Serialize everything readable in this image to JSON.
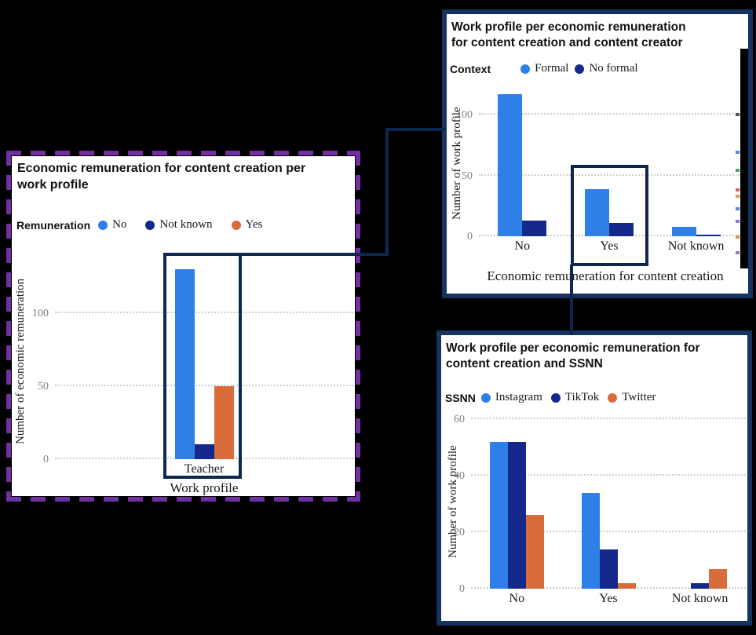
{
  "page": {
    "background": "#000000"
  },
  "colors": {
    "series_blue": "#2E7FE8",
    "series_navy": "#15298C",
    "series_orange": "#D96C3B",
    "panel_border": "#16335F",
    "highlight_box": "#0D2750",
    "connector": "#0D2750",
    "dashed_border": "#7030A0",
    "gridline": "#CFCFCF",
    "tick_text": "#808080"
  },
  "chart_data": [
    {
      "type": "bar",
      "title": "Economic remuneration for content creation per work profile",
      "title_lines": [
        "Economic remuneration for content creation per",
        "work profile"
      ],
      "legend_keyword": "Remuneration",
      "legend_position": "top-left",
      "categories": [
        "Teacher"
      ],
      "series": [
        {
          "name": "No",
          "color": "#2E7FE8",
          "values": [
            130
          ]
        },
        {
          "name": "Not known",
          "color": "#15298C",
          "values": [
            10
          ]
        },
        {
          "name": "Yes",
          "color": "#D96C3B",
          "values": [
            50
          ]
        }
      ],
      "xlabel": "Work profile",
      "ylabel": "Number of economic remuneration",
      "yticks": [
        0,
        50,
        100
      ],
      "ylim": [
        0,
        135
      ],
      "grid": "dotted-horizontal",
      "highlight_box_around": "Teacher"
    },
    {
      "type": "bar",
      "title": "Work profile per economic remuneration for content creation and content creator",
      "title_lines": [
        "Work profile per economic remuneration",
        "for content creation and content creator"
      ],
      "legend_keyword": "Context",
      "legend_position": "top-left",
      "categories": [
        "No",
        "Yes",
        "Not known"
      ],
      "series": [
        {
          "name": "Formal",
          "color": "#2E7FE8",
          "values": [
            117,
            39,
            8
          ]
        },
        {
          "name": "No formal",
          "color": "#15298C",
          "values": [
            13,
            11,
            1
          ]
        }
      ],
      "xlabel": "Economic remuneration for content creation",
      "ylabel": "Number of work profile",
      "yticks": [
        0,
        50,
        100
      ],
      "ylim": [
        0,
        122
      ],
      "grid": "dotted-horizontal",
      "highlight_box_around": "Yes"
    },
    {
      "type": "bar",
      "title": "Work profile per economic remuneration for content creation and SSNN",
      "title_lines": [
        "Work profile per economic remuneration for",
        "content creation and SSNN"
      ],
      "legend_keyword": "SSNN",
      "legend_position": "top-left",
      "categories": [
        "No",
        "Yes",
        "Not known"
      ],
      "series": [
        {
          "name": "Instagram",
          "color": "#2E7FE8",
          "values": [
            52,
            34,
            0
          ]
        },
        {
          "name": "TikTok",
          "color": "#15298C",
          "values": [
            52,
            14,
            2
          ]
        },
        {
          "name": "Twitter",
          "color": "#D96C3B",
          "values": [
            26,
            2,
            7
          ]
        }
      ],
      "xlabel": "",
      "ylabel": "Number of work profile",
      "yticks": [
        0,
        20,
        40,
        60
      ],
      "ylim": [
        0,
        62
      ],
      "grid": "dotted-horizontal"
    }
  ],
  "artifacts": {
    "panel_b_edge_fragments": [
      {
        "y": 126,
        "color": "#3A3A3A"
      },
      {
        "y": 174,
        "color": "#4472C4"
      },
      {
        "y": 197,
        "color": "#3A8F4A"
      },
      {
        "y": 222,
        "color": "#C0504D"
      },
      {
        "y": 230,
        "color": "#D98A2A"
      },
      {
        "y": 246,
        "color": "#4472C4"
      },
      {
        "y": 262,
        "color": "#7A5AD9"
      },
      {
        "y": 282,
        "color": "#D98A2A"
      },
      {
        "y": 302,
        "color": "#8064A2"
      }
    ]
  }
}
